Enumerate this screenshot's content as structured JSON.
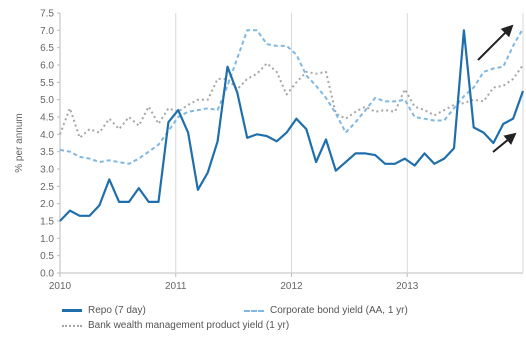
{
  "chart_data": {
    "type": "line",
    "title": "",
    "xlabel": "",
    "ylabel": "% per annum",
    "ylim": [
      0,
      7.5
    ],
    "yticks": [
      "0.0",
      "0.5",
      "1.0",
      "1.5",
      "2.0",
      "2.5",
      "3.0",
      "3.5",
      "4.0",
      "4.5",
      "5.0",
      "5.5",
      "6.0",
      "6.5",
      "7.0",
      "7.5"
    ],
    "xticks": [
      "2010",
      "2011",
      "2012",
      "2013"
    ],
    "x_start_year": 2010,
    "x_end_year": 2014,
    "grid": "vertical",
    "legend_position": "bottom",
    "series": [
      {
        "name": "Repo (7 day)",
        "color": "#1f6fad",
        "style": "solid",
        "values": [
          1.5,
          1.8,
          1.65,
          1.65,
          1.95,
          2.7,
          2.05,
          2.05,
          2.45,
          2.05,
          2.05,
          4.35,
          4.7,
          4.05,
          2.4,
          2.9,
          3.8,
          5.95,
          5.2,
          3.9,
          4.0,
          3.95,
          3.8,
          4.05,
          4.45,
          4.15,
          3.2,
          3.85,
          2.95,
          3.2,
          3.45,
          3.45,
          3.4,
          3.15,
          3.15,
          3.3,
          3.1,
          3.45,
          3.15,
          3.3,
          3.6,
          7.0,
          4.2,
          4.05,
          3.75,
          4.3,
          4.45,
          5.25
        ]
      },
      {
        "name": "Corporate bond yield (AA, 1 yr)",
        "color": "#7fb8e3",
        "style": "dashed",
        "values": [
          3.55,
          3.5,
          3.35,
          3.3,
          3.2,
          3.25,
          3.2,
          3.15,
          3.3,
          3.5,
          3.7,
          4.1,
          4.5,
          4.65,
          4.7,
          4.75,
          4.7,
          5.4,
          6.2,
          7.0,
          7.0,
          6.6,
          6.55,
          6.55,
          6.3,
          5.7,
          5.4,
          5.05,
          4.6,
          4.05,
          4.35,
          4.7,
          5.05,
          4.95,
          4.95,
          5.0,
          4.5,
          4.45,
          4.4,
          4.4,
          4.75,
          5.1,
          5.35,
          5.8,
          5.9,
          5.95,
          6.55,
          7.05
        ]
      },
      {
        "name": "Bank wealth management product yield (1 yr)",
        "color": "#a6a6a6",
        "style": "dotted",
        "values": [
          4.0,
          4.75,
          3.9,
          4.15,
          4.05,
          4.45,
          4.15,
          4.5,
          4.25,
          4.8,
          4.3,
          4.75,
          4.65,
          4.85,
          5.0,
          5.0,
          5.6,
          5.6,
          5.3,
          5.6,
          5.75,
          6.05,
          5.8,
          5.15,
          5.5,
          5.8,
          5.75,
          5.8,
          4.6,
          4.45,
          4.65,
          4.8,
          4.65,
          4.7,
          4.65,
          5.3,
          4.8,
          4.7,
          4.55,
          4.7,
          4.85,
          4.9,
          5.0,
          4.95,
          5.35,
          5.4,
          5.6,
          6.0
        ]
      }
    ]
  }
}
